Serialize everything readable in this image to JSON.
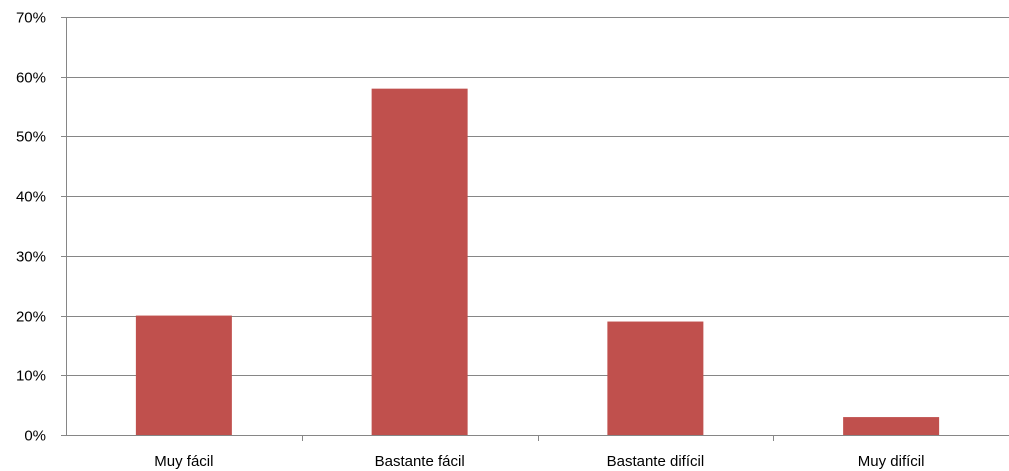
{
  "chart_data": {
    "type": "bar",
    "categories": [
      "Muy fácil",
      "Bastante fácil",
      "Bastante difícil",
      "Muy difícil"
    ],
    "values": [
      20,
      58,
      19,
      3
    ],
    "ylim": [
      0,
      70
    ],
    "yticks": [
      0,
      10,
      20,
      30,
      40,
      50,
      60,
      70
    ],
    "ytick_labels": [
      "0%",
      "10%",
      "20%",
      "30%",
      "40%",
      "50%",
      "60%",
      "70%"
    ],
    "grid": true,
    "legend": "none",
    "bar_color": "#c0504d",
    "grid_color": "#868686",
    "title": "",
    "xlabel": "",
    "ylabel": ""
  }
}
